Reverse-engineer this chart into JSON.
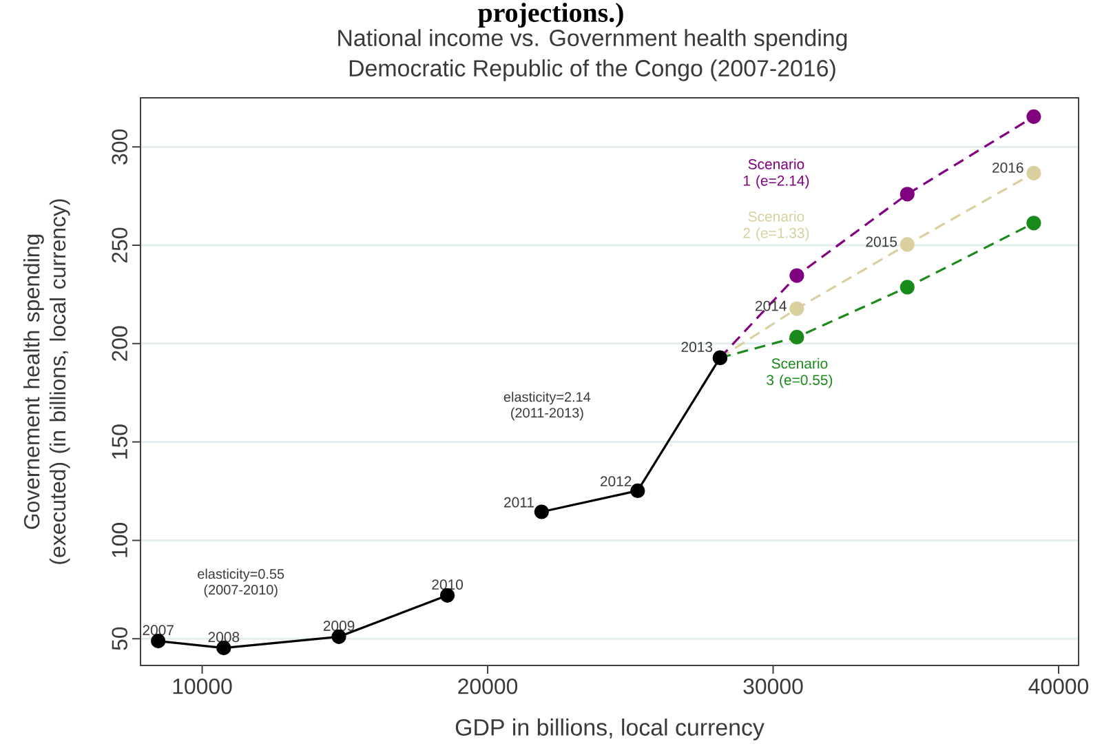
{
  "chart_data": {
    "type": "line",
    "title": "National income vs. Government health spending",
    "subtitle": "Democratic Republic of the Congo (2007-2016)",
    "xlabel": "GDP in billions, local currency",
    "ylabel": "Governement health spending (executed) (in billions, local currency)",
    "xlim": [
      7840,
      40700
    ],
    "ylim": [
      36.4,
      325
    ],
    "xticks": [
      10000,
      20000,
      30000,
      40000
    ],
    "yticks": [
      50,
      100,
      150,
      200,
      250,
      300
    ],
    "grid": "y",
    "marker": "circle",
    "series": [
      {
        "x": [
          8460,
          10755,
          14790,
          18590
        ],
        "values": [
          48.8,
          45.3,
          51,
          72
        ],
        "color": "#000000",
        "line_style": "solid"
      },
      {
        "x": [
          21890,
          25255,
          28140
        ],
        "values": [
          114.5,
          125.2,
          192.8
        ],
        "color": "#000000",
        "line_style": "solid"
      },
      {
        "name": "Scenario 1 (e=2.14)",
        "x": [
          28140,
          30830,
          34700,
          39130
        ],
        "values": [
          192.8,
          234.6,
          276,
          315.4
        ],
        "color": "#800080",
        "line_style": "dashed"
      },
      {
        "name": "Scenario 2 (e=1.33)",
        "x": [
          28140,
          30830,
          34700,
          39130
        ],
        "values": [
          192.8,
          217.8,
          250.4,
          286.7
        ],
        "color": "#d9cf9f",
        "line_style": "dashed"
      },
      {
        "name": "Scenario 3 (e=0.55)",
        "x": [
          28140,
          30830,
          34700,
          39130
        ],
        "values": [
          192.8,
          203.3,
          228.7,
          261.3
        ],
        "color": "#1a8a1a",
        "line_style": "dashed"
      }
    ],
    "annotations": [
      "projections.)",
      "elasticity=0.55 (2007-2010)",
      "elasticity=2.14 (2011-2013)",
      {
        "text": "2007",
        "x": 8460,
        "y": 48.8
      },
      {
        "text": "2008",
        "x": 10755,
        "y": 45.3
      },
      {
        "text": "2009",
        "x": 14790,
        "y": 51
      },
      {
        "text": "2010",
        "x": 18590,
        "y": 72
      },
      {
        "text": "2011",
        "x": 21890,
        "y": 114.5
      },
      {
        "text": "2012",
        "x": 25255,
        "y": 125.2
      },
      {
        "text": "2013",
        "x": 28140,
        "y": 192.8
      },
      {
        "text": "2014",
        "x": 30830,
        "y": 217.8
      },
      {
        "text": "2015",
        "x": 34700,
        "y": 250.4
      },
      {
        "text": "2016",
        "x": 39130,
        "y": 286.7
      }
    ]
  }
}
